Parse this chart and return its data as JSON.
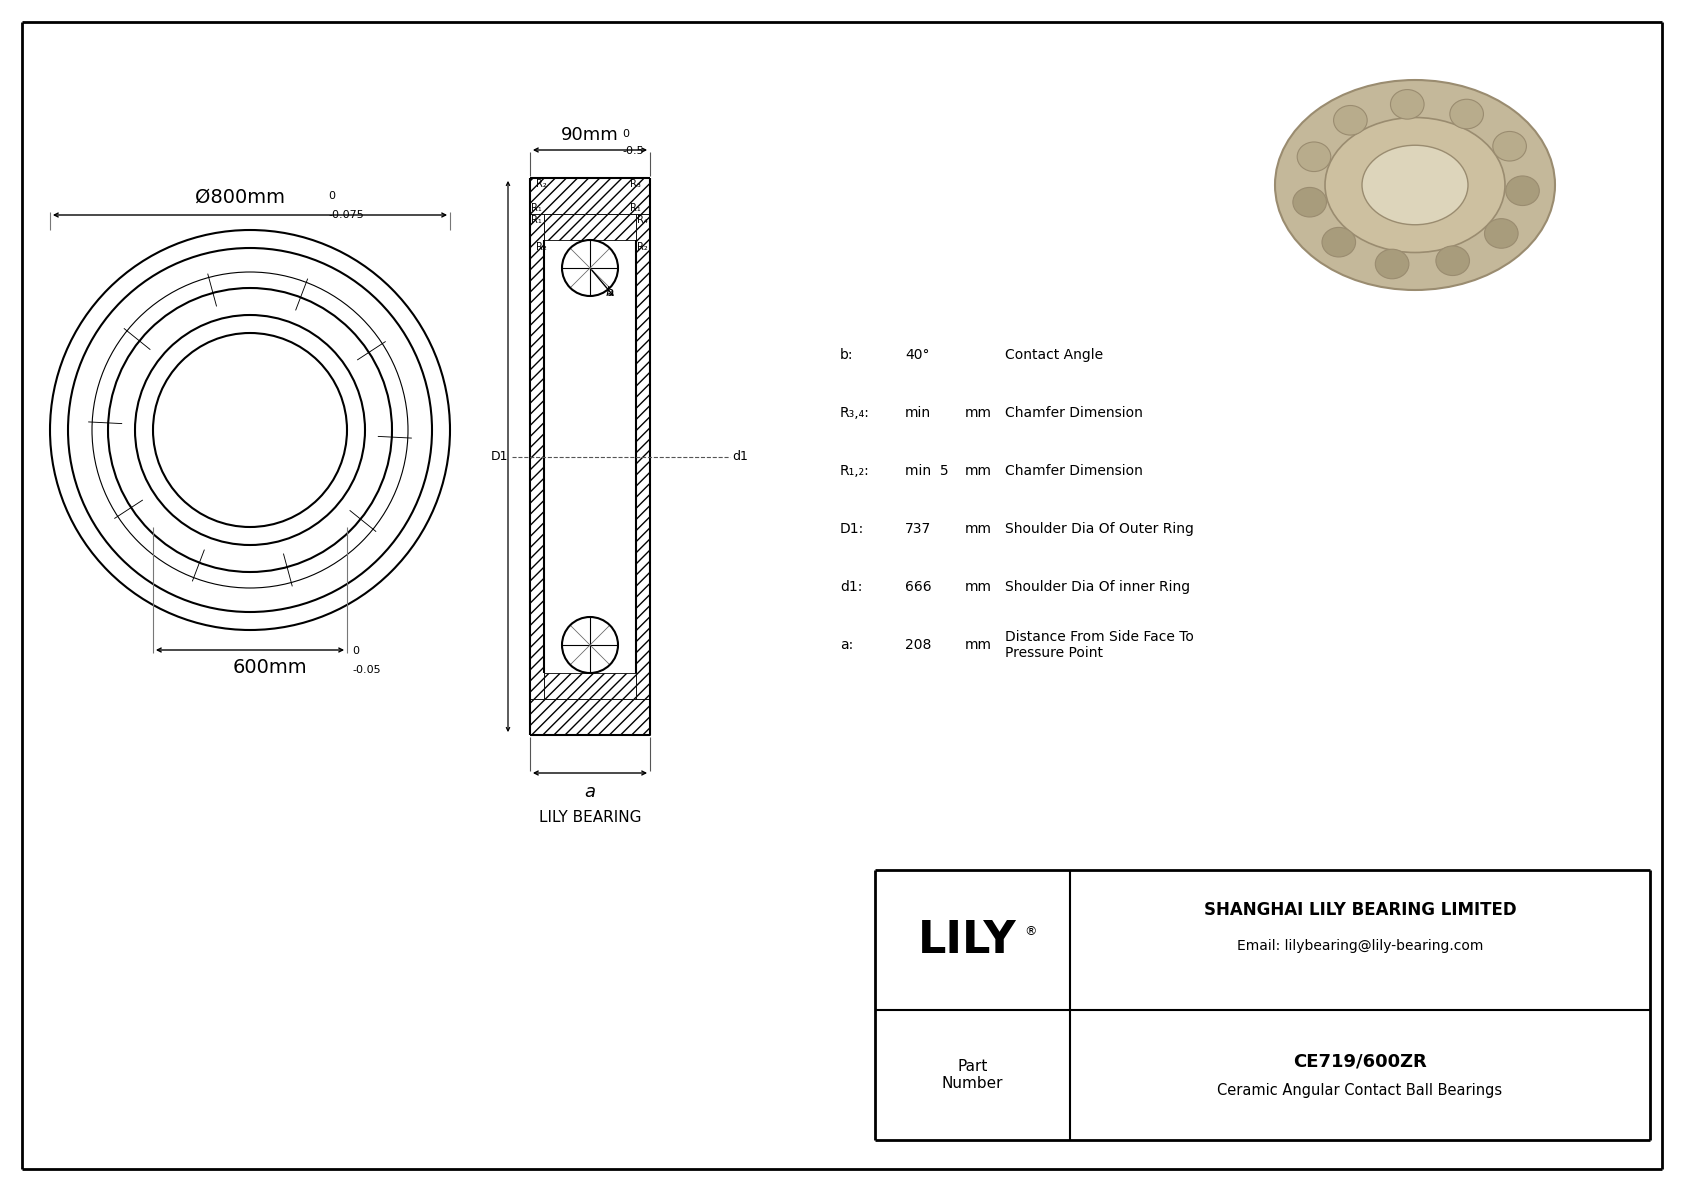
{
  "bg_color": "#ffffff",
  "line_color": "#000000",
  "dims": {
    "OD_label": "Ø800mm",
    "OD_tol_upper": "0",
    "OD_tol_lower": "-0.075",
    "ID_label": "600mm",
    "ID_tol_upper": "0",
    "ID_tol_lower": "-0.05",
    "W_label": "90mm",
    "W_tol_upper": "0",
    "W_tol_lower": "-0.5"
  },
  "specs": [
    {
      "label": "b:",
      "value": "40°",
      "unit": "",
      "desc": "Contact Angle"
    },
    {
      "label": "R₃,₄:",
      "value": "min",
      "unit": "mm",
      "desc": "Chamfer Dimension"
    },
    {
      "label": "R₁,₂:",
      "value": "min  5",
      "unit": "mm",
      "desc": "Chamfer Dimension"
    },
    {
      "label": "D1:",
      "value": "737",
      "unit": "mm",
      "desc": "Shoulder Dia Of Outer Ring"
    },
    {
      "label": "d1:",
      "value": "666",
      "unit": "mm",
      "desc": "Shoulder Dia Of inner Ring"
    },
    {
      "label": "a:",
      "value": "208",
      "unit": "mm",
      "desc": "Distance From Side Face To\nPressure Point"
    }
  ],
  "company": "SHANGHAI LILY BEARING LIMITED",
  "email": "Email: lilybearing@lily-bearing.com",
  "part_number": "CE719/600ZR",
  "part_type": "Ceramic Angular Contact Ball Bearings",
  "lily_label": "LILY BEARING",
  "a_label": "a",
  "lily_text": "LILY",
  "part_cell": "Part\nNumber",
  "reg_sym": "®"
}
